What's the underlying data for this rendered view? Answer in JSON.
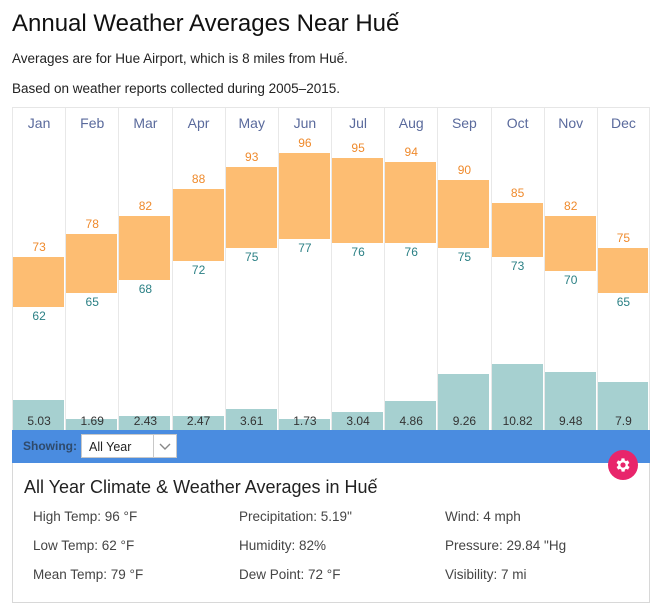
{
  "header": {
    "title": "Annual Weather Averages Near Huế",
    "subtitle_station": "Averages are for Hue Airport, which is 8 miles from Huế.",
    "subtitle_period": "Based on weather reports collected during 2005–2015."
  },
  "chart_data": {
    "type": "bar",
    "title": "Annual Weather Averages Near Huế",
    "categories": [
      "Jan",
      "Feb",
      "Mar",
      "Apr",
      "May",
      "Jun",
      "Jul",
      "Aug",
      "Sep",
      "Oct",
      "Nov",
      "Dec"
    ],
    "series": [
      {
        "name": "High Temp (°F)",
        "values": [
          73,
          78,
          82,
          88,
          93,
          96,
          95,
          94,
          90,
          85,
          82,
          75
        ],
        "color": "#ef8a2c"
      },
      {
        "name": "Low Temp (°F)",
        "values": [
          62,
          65,
          68,
          72,
          75,
          77,
          76,
          76,
          75,
          73,
          70,
          65
        ],
        "color": "#2b8085"
      },
      {
        "name": "Precipitation (in)",
        "values": [
          5.03,
          1.69,
          2.43,
          2.47,
          3.61,
          1.73,
          3.04,
          4.86,
          9.26,
          10.82,
          9.48,
          7.9
        ],
        "color": "#a6d0d0"
      }
    ],
    "temp_bar_color": "#fdbd72",
    "xlabel": "",
    "ylabel": "",
    "grid": false,
    "legend": "none"
  },
  "controls": {
    "showing_label": "Showing:",
    "period_select_value": "All Year",
    "settings_icon": "gear-icon",
    "accent_color": "#4a8ce0",
    "settings_color": "#e8256b"
  },
  "summary": {
    "title": "All Year Climate & Weather Averages in Huế",
    "stats": [
      [
        "High Temp: 96 °F",
        "Precipitation: 5.19\"",
        "Wind: 4 mph"
      ],
      [
        "Low Temp: 62 °F",
        "Humidity: 82%",
        "Pressure: 29.84 \"Hg"
      ],
      [
        "Mean Temp: 79 °F",
        "Dew Point: 72 °F",
        "Visibility: 7 mi"
      ]
    ]
  }
}
